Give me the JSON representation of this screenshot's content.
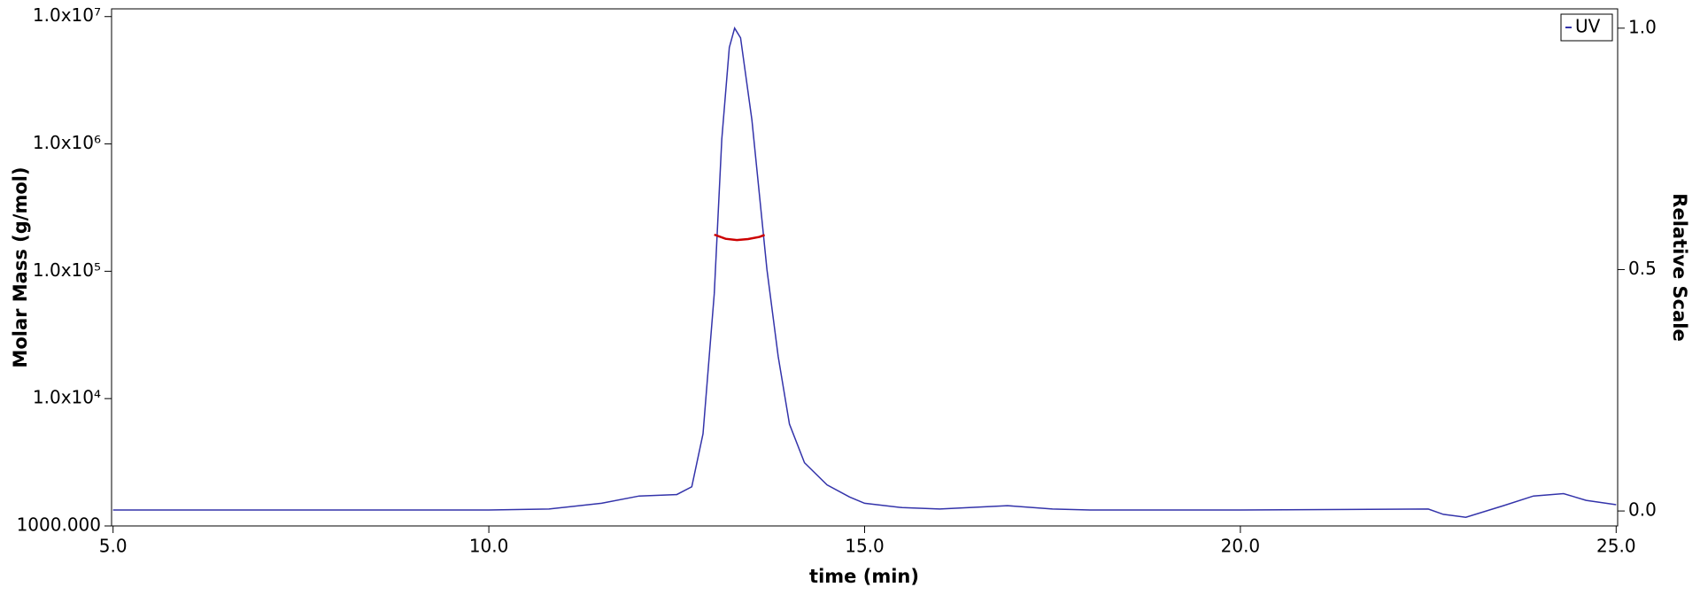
{
  "chart_data": {
    "type": "line",
    "xlabel": "time (min)",
    "ylabel": "Molar Mass (g/mol)",
    "y2label": "Relative Scale",
    "xlim": [
      4.98,
      25.02
    ],
    "xticks": [
      {
        "value": 5,
        "label": "5.0"
      },
      {
        "value": 10,
        "label": "10.0"
      },
      {
        "value": 15,
        "label": "15.0"
      },
      {
        "value": 20,
        "label": "20.0"
      },
      {
        "value": 25,
        "label": "25.0"
      }
    ],
    "ylim": [
      1000,
      11500000
    ],
    "ylog": true,
    "yticks": [
      {
        "value": 1000,
        "label": "1000.000"
      },
      {
        "value": 10000,
        "label": "1.0x10⁴"
      },
      {
        "value": 100000,
        "label": "1.0x10⁵"
      },
      {
        "value": 1000000,
        "label": "1.0x10⁶"
      },
      {
        "value": 10000000,
        "label": "1.0x10⁷"
      }
    ],
    "y2lim": [
      -0.031,
      1.04
    ],
    "y2ticks": [
      {
        "value": 0,
        "label": "0.0"
      },
      {
        "value": 0.5,
        "label": "0.5"
      },
      {
        "value": 1,
        "label": "1.0"
      }
    ],
    "legend": "top-right",
    "series": [
      {
        "name": "UV",
        "color": "#3333aa",
        "axis": "y2",
        "x": [
          5.0,
          7.5,
          10.0,
          10.8,
          11.5,
          12.0,
          12.5,
          12.7,
          12.85,
          13.0,
          13.1,
          13.2,
          13.27,
          13.35,
          13.5,
          13.7,
          13.85,
          14.0,
          14.2,
          14.5,
          14.8,
          15.0,
          15.5,
          16.0,
          16.9,
          17.5,
          18.0,
          20.0,
          22.5,
          22.7,
          23.0,
          23.5,
          23.9,
          24.3,
          24.6,
          25.0
        ],
        "values": [
          0.002,
          0.002,
          0.002,
          0.004,
          0.016,
          0.031,
          0.034,
          0.05,
          0.16,
          0.45,
          0.77,
          0.96,
          1.0,
          0.98,
          0.81,
          0.5,
          0.32,
          0.18,
          0.1,
          0.054,
          0.029,
          0.016,
          0.007,
          0.004,
          0.011,
          0.004,
          0.002,
          0.002,
          0.004,
          -0.007,
          -0.013,
          0.011,
          0.031,
          0.036,
          0.022,
          0.013
        ]
      },
      {
        "color": "#cc0000",
        "axis": "y",
        "x": [
          13.0,
          13.15,
          13.3,
          13.45,
          13.6,
          13.67
        ],
        "values": [
          194000,
          180000,
          176000,
          179000,
          186000,
          193000
        ]
      }
    ]
  }
}
